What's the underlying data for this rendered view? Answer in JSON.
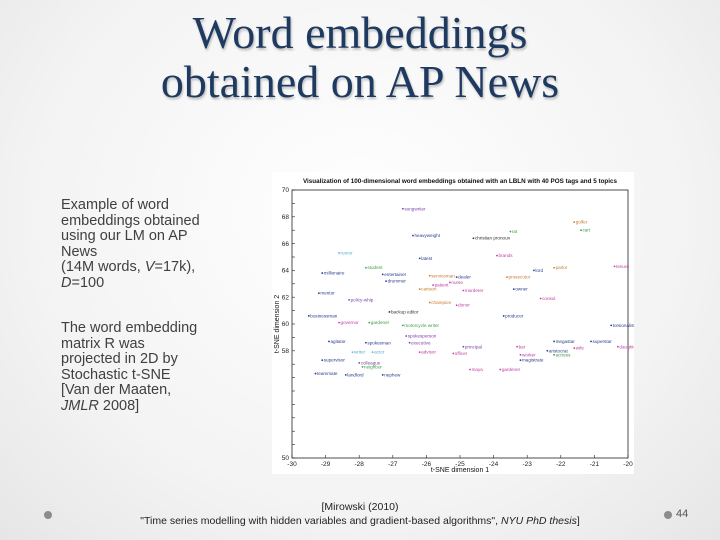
{
  "title": {
    "line1": "Word embeddings",
    "line2": "obtained on AP News"
  },
  "paragraph1": {
    "l1": "Example of word",
    "l2": "embeddings obtained",
    "l3": "using our LM on AP",
    "l4": "News",
    "l5_pre": "(14M words, ",
    "l5_var": "V",
    "l5_post": "=17k),",
    "l6_var": "D",
    "l6_post": "=100"
  },
  "paragraph2": {
    "l1": "The word embedding",
    "l2": "matrix R was",
    "l3": "projected in 2D by",
    "l4": "Stochastic t-SNE",
    "l5": "[Van der Maaten,",
    "l6_var": "JMLR",
    "l6_post": " 2008]"
  },
  "citation": {
    "line1": "[Mirowski (2010)",
    "line2_pre": "\"Time series modelling with hidden variables and gradient-based algorithms\", ",
    "line2_em": "NYU PhD thesis",
    "line2_post": "]"
  },
  "page_number": "44",
  "chart_data": {
    "type": "scatter",
    "title": "Visualization of 100-dimensional word embeddings obtained with an LBLN with 40 POS tags and 5 topics",
    "xlabel": "t-SNE dimension 1",
    "ylabel": "t-SNE dimension 2",
    "xlim": [
      -30,
      -20
    ],
    "ylim": [
      50,
      70
    ],
    "x_ticks": [
      "-30",
      "-29",
      "-28",
      "-27",
      "-26",
      "-25",
      "-24",
      "-23",
      "-22",
      "-21",
      "-20"
    ],
    "y_ticks": [
      "70",
      "69",
      "68",
      "67",
      "66",
      "65",
      "64",
      "63",
      "62",
      "61",
      "60",
      "59",
      "58",
      "57",
      "56",
      "55",
      "54",
      "53",
      "52",
      "51",
      "50"
    ],
    "y_tick_labels": [
      "70",
      "",
      "68",
      "",
      "66",
      "",
      "64",
      "",
      "62",
      "",
      "60",
      "",
      "58",
      "",
      "",
      "",
      "",
      "",
      "",
      "",
      "50"
    ],
    "points": [
      {
        "x": -26.7,
        "y": 68.6,
        "label": "songwriter",
        "color": "#7b3fb0"
      },
      {
        "x": -21.6,
        "y": 67.6,
        "label": "golfer",
        "color": "#c87a2e"
      },
      {
        "x": -21.4,
        "y": 67.0,
        "label": "cart",
        "color": "#3aa046"
      },
      {
        "x": -23.5,
        "y": 66.9,
        "label": "rat",
        "color": "#3aa046"
      },
      {
        "x": -26.4,
        "y": 66.6,
        "label": "heavyweight",
        "color": "#2a3d8f"
      },
      {
        "x": -24.6,
        "y": 66.4,
        "label": "christian pronoun",
        "color": "#333333"
      },
      {
        "x": -28.6,
        "y": 65.3,
        "label": "rumor",
        "color": "#5ab0c8"
      },
      {
        "x": -26.2,
        "y": 64.9,
        "label": "latest",
        "color": "#2a3d8f"
      },
      {
        "x": -23.9,
        "y": 65.1,
        "label": "brands",
        "color": "#c040a0"
      },
      {
        "x": -22.2,
        "y": 64.2,
        "label": "parlor",
        "color": "#c87a2e"
      },
      {
        "x": -20.4,
        "y": 64.3,
        "label": "tenure",
        "color": "#c040a0"
      },
      {
        "x": -27.8,
        "y": 64.2,
        "label": "student",
        "color": "#3aa046"
      },
      {
        "x": -22.8,
        "y": 64.0,
        "label": "lord",
        "color": "#2a3d8f"
      },
      {
        "x": -29.1,
        "y": 63.8,
        "label": "millionaire",
        "color": "#2a3d8f"
      },
      {
        "x": -27.3,
        "y": 63.7,
        "label": "entertainer",
        "color": "#2a3d8f"
      },
      {
        "x": -25.9,
        "y": 63.6,
        "label": "serviceman",
        "color": "#c87a2e"
      },
      {
        "x": -25.1,
        "y": 63.5,
        "label": "dealer",
        "color": "#2a3d8f"
      },
      {
        "x": -23.6,
        "y": 63.5,
        "label": "prosecutor",
        "color": "#c87a2e"
      },
      {
        "x": -27.2,
        "y": 63.2,
        "label": "drummer",
        "color": "#2a3d8f"
      },
      {
        "x": -25.3,
        "y": 63.1,
        "label": "nurse",
        "color": "#c040a0"
      },
      {
        "x": -25.8,
        "y": 62.9,
        "label": "patient",
        "color": "#c040a0"
      },
      {
        "x": -26.2,
        "y": 62.6,
        "label": "cartoon",
        "color": "#c87a2e"
      },
      {
        "x": -24.9,
        "y": 62.5,
        "label": "murderer",
        "color": "#c040a0"
      },
      {
        "x": -23.4,
        "y": 62.6,
        "label": "owner",
        "color": "#2a3d8f"
      },
      {
        "x": -29.2,
        "y": 62.3,
        "label": "mentor",
        "color": "#2a3d8f"
      },
      {
        "x": -22.6,
        "y": 61.9,
        "label": "consul",
        "color": "#c040a0"
      },
      {
        "x": -28.3,
        "y": 61.8,
        "label": "policy-whip",
        "color": "#7b3fb0"
      },
      {
        "x": -25.9,
        "y": 61.6,
        "label": "champion",
        "color": "#c87a2e"
      },
      {
        "x": -25.1,
        "y": 61.4,
        "label": "donor",
        "color": "#c040a0"
      },
      {
        "x": -27.1,
        "y": 60.9,
        "label": "backup editor",
        "color": "#333333"
      },
      {
        "x": -29.5,
        "y": 60.6,
        "label": "businessman",
        "color": "#2a3d8f"
      },
      {
        "x": -23.7,
        "y": 60.6,
        "label": "producer",
        "color": "#2a3d8f"
      },
      {
        "x": -28.6,
        "y": 60.1,
        "label": "governor",
        "color": "#c040a0"
      },
      {
        "x": -27.7,
        "y": 60.1,
        "label": "gardener",
        "color": "#3aa046"
      },
      {
        "x": -26.7,
        "y": 59.9,
        "label": "motorcycle writer",
        "color": "#3aa046"
      },
      {
        "x": -20.5,
        "y": 59.9,
        "label": "torsionalist",
        "color": "#2a3d8f"
      },
      {
        "x": -26.6,
        "y": 59.1,
        "label": "spokesperson",
        "color": "#7b3fb0"
      },
      {
        "x": -28.9,
        "y": 58.7,
        "label": "agitator",
        "color": "#2a3d8f"
      },
      {
        "x": -27.8,
        "y": 58.6,
        "label": "spokesman",
        "color": "#2a3d8f"
      },
      {
        "x": -26.5,
        "y": 58.6,
        "label": "executive",
        "color": "#7b3fb0"
      },
      {
        "x": -24.9,
        "y": 58.3,
        "label": "principal",
        "color": "#7b3fb0"
      },
      {
        "x": -22.2,
        "y": 58.7,
        "label": "megastar",
        "color": "#2a3d8f"
      },
      {
        "x": -21.1,
        "y": 58.7,
        "label": "superstar",
        "color": "#2a3d8f"
      },
      {
        "x": -20.3,
        "y": 58.3,
        "label": "daughter",
        "color": "#c040a0"
      },
      {
        "x": -23.3,
        "y": 58.3,
        "label": "bar",
        "color": "#c040a0"
      },
      {
        "x": -22.4,
        "y": 58.0,
        "label": "aristocrat",
        "color": "#2a3d8f"
      },
      {
        "x": -21.6,
        "y": 58.2,
        "label": "wife",
        "color": "#c040a0"
      },
      {
        "x": -28.2,
        "y": 57.9,
        "label": "writer",
        "color": "#5ab0c8"
      },
      {
        "x": -27.6,
        "y": 57.9,
        "label": "actor",
        "color": "#5ab0c8"
      },
      {
        "x": -26.2,
        "y": 57.9,
        "label": "advisor",
        "color": "#c040a0"
      },
      {
        "x": -25.2,
        "y": 57.8,
        "label": "officer",
        "color": "#c040a0"
      },
      {
        "x": -23.2,
        "y": 57.7,
        "label": "worker",
        "color": "#c040a0"
      },
      {
        "x": -22.2,
        "y": 57.7,
        "label": "actress",
        "color": "#3aa046"
      },
      {
        "x": -29.1,
        "y": 57.3,
        "label": "supervisor",
        "color": "#2a3d8f"
      },
      {
        "x": -28.0,
        "y": 57.1,
        "label": "colleague",
        "color": "#7b3fb0"
      },
      {
        "x": -23.2,
        "y": 57.3,
        "label": "magistrate",
        "color": "#2a3d8f"
      },
      {
        "x": -27.9,
        "y": 56.8,
        "label": "neighbor",
        "color": "#3aa046"
      },
      {
        "x": -29.3,
        "y": 56.3,
        "label": "teammate",
        "color": "#2a3d8f"
      },
      {
        "x": -28.4,
        "y": 56.2,
        "label": "landlord",
        "color": "#2a3d8f"
      },
      {
        "x": -27.3,
        "y": 56.2,
        "label": "nephew",
        "color": "#2a3d8f"
      },
      {
        "x": -24.7,
        "y": 56.6,
        "label": "maya",
        "color": "#c040a0"
      },
      {
        "x": -23.8,
        "y": 56.6,
        "label": "gardener",
        "color": "#c040a0"
      }
    ]
  }
}
